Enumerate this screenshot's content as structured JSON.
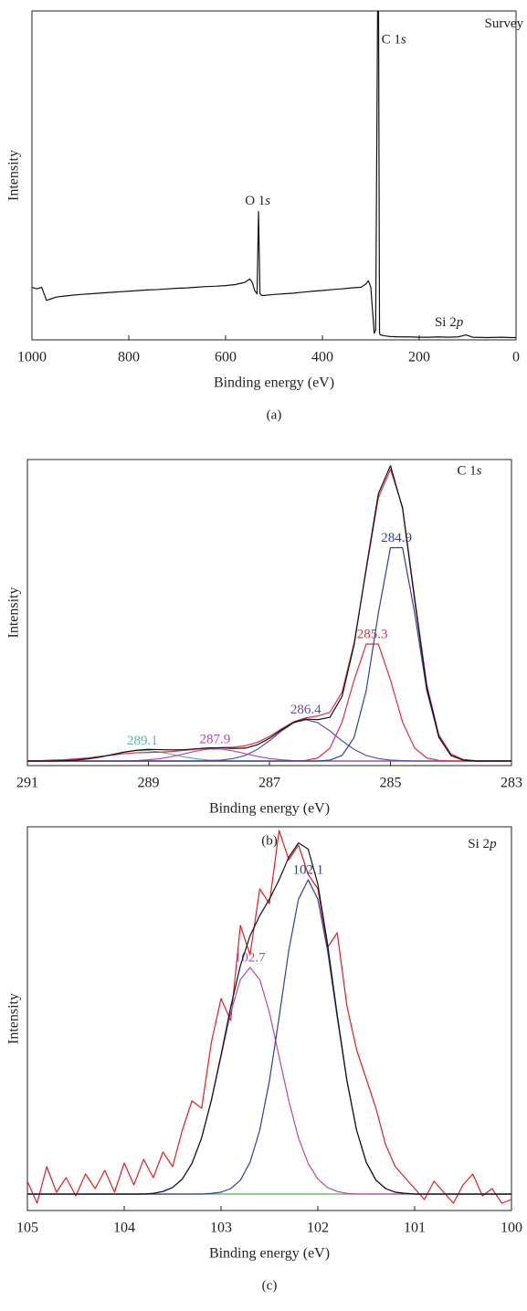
{
  "chart_data": [
    {
      "type": "line",
      "xlabel": "Binding energy (eV)",
      "ylabel": "Intensity",
      "panel_label": "(a)",
      "xlim": [
        1000,
        0
      ],
      "ylim": [
        0,
        100
      ],
      "xticks": [
        1000,
        800,
        600,
        400,
        200,
        0
      ],
      "x": [
        1000,
        990,
        980,
        975,
        970,
        960,
        950,
        940,
        920,
        900,
        880,
        860,
        840,
        820,
        800,
        780,
        760,
        740,
        720,
        700,
        680,
        660,
        640,
        620,
        600,
        580,
        560,
        550,
        545,
        540,
        535,
        532,
        529,
        525,
        520,
        500,
        480,
        460,
        440,
        420,
        400,
        380,
        360,
        340,
        320,
        310,
        305,
        300,
        296,
        293,
        290,
        286,
        284,
        282,
        280,
        270,
        260,
        240,
        220,
        200,
        180,
        160,
        140,
        120,
        103,
        90,
        60,
        30,
        10,
        0
      ],
      "series": [
        {
          "color": "#111111",
          "values": [
            16,
            15.5,
            16,
            14,
            12,
            12.5,
            13,
            13.2,
            13.5,
            13.8,
            14,
            14.2,
            14.4,
            14.6,
            14.8,
            15,
            15.2,
            15.3,
            15.5,
            15.7,
            15.8,
            16,
            16.2,
            16.3,
            16.5,
            16.8,
            17.5,
            18.5,
            17.5,
            15,
            14,
            39,
            14,
            13.5,
            13.5,
            13.8,
            14,
            14.2,
            14.5,
            14.8,
            15,
            15.3,
            15.5,
            15.8,
            16,
            17,
            18,
            16,
            8,
            2,
            3,
            100,
            100,
            2,
            1.5,
            1.2,
            1,
            0.9,
            0.9,
            0.8,
            0.8,
            0.9,
            0.8,
            0.9,
            1.5,
            0.8,
            0.7,
            0.8,
            0.7,
            0.7
          ]
        }
      ],
      "annotations": [
        {
          "text": "Survey",
          "x": 65,
          "y": 96
        },
        {
          "text": "C 1s",
          "x": 278,
          "y": 91
        },
        {
          "text": "O 1s",
          "x": 560,
          "y": 42
        },
        {
          "text": "Si 2p",
          "x": 168,
          "y": 5
        }
      ]
    },
    {
      "type": "line",
      "xlabel": "Binding energy (eV)",
      "ylabel": "Intensity",
      "panel_label": "(b)",
      "xlim": [
        291,
        283
      ],
      "ylim": [
        0,
        100
      ],
      "xticks": [
        291,
        289,
        287,
        285,
        283
      ],
      "x": [
        291.0,
        290.8,
        290.6,
        290.4,
        290.2,
        290.0,
        289.8,
        289.6,
        289.4,
        289.2,
        289.0,
        288.8,
        288.6,
        288.4,
        288.2,
        288.0,
        287.8,
        287.6,
        287.4,
        287.2,
        287.0,
        286.8,
        286.6,
        286.4,
        286.2,
        286.0,
        285.8,
        285.6,
        285.4,
        285.2,
        285.0,
        284.8,
        284.6,
        284.4,
        284.2,
        284.0,
        283.8,
        283.6,
        283.4,
        283.2,
        283.0
      ],
      "series": [
        {
          "color": "#4caf50",
          "values": [
            1.5,
            1.5,
            1.5,
            1.5,
            1.5,
            1.5,
            1.5,
            1.5,
            1.5,
            1.5,
            1.5,
            1.5,
            1.5,
            1.5,
            1.5,
            1.5,
            1.5,
            1.5,
            1.5,
            1.5,
            1.5,
            1.5,
            1.5,
            1.5,
            1.5,
            1.5,
            1.5,
            1.5,
            1.5,
            1.5,
            1.5,
            1.5,
            1.5,
            1.5,
            1.5,
            1.5,
            1.5,
            1.5,
            1.5,
            1.5,
            1.5
          ]
        },
        {
          "color": "#5fb8a0",
          "label": "289.1",
          "values": [
            1.5,
            1.5,
            1.5,
            1.6,
            1.8,
            2.2,
            2.8,
            3.6,
            4.4,
            4.9,
            4.9,
            4.4,
            3.6,
            2.8,
            2.2,
            1.8,
            1.6,
            1.5,
            1.5,
            1.5,
            1.5,
            1.5,
            1.5,
            1.5,
            1.5,
            1.5,
            1.5,
            1.5,
            1.5,
            1.5,
            1.5,
            1.5,
            1.5,
            1.5,
            1.5,
            1.5,
            1.5,
            1.5,
            1.5,
            1.5,
            1.5
          ]
        },
        {
          "color": "#b04aa8",
          "label": "287.9",
          "values": [
            1.5,
            1.5,
            1.5,
            1.5,
            1.5,
            1.5,
            1.5,
            1.5,
            1.5,
            1.6,
            1.9,
            2.3,
            3.0,
            3.9,
            4.8,
            5.4,
            5.4,
            4.8,
            3.9,
            3.0,
            2.3,
            1.9,
            1.6,
            1.5,
            1.5,
            1.5,
            1.5,
            1.5,
            1.5,
            1.5,
            1.5,
            1.5,
            1.5,
            1.5,
            1.5,
            1.5,
            1.5,
            1.5,
            1.5,
            1.5,
            1.5
          ]
        },
        {
          "color": "#5a4fb0",
          "label": "286.4",
          "values": [
            1.5,
            1.5,
            1.5,
            1.5,
            1.5,
            1.5,
            1.5,
            1.5,
            1.5,
            1.5,
            1.5,
            1.5,
            1.5,
            1.5,
            1.5,
            1.6,
            1.8,
            2.3,
            3.3,
            5.3,
            8.1,
            11.3,
            14.0,
            15.0,
            14.0,
            11.3,
            8.1,
            5.3,
            3.3,
            2.3,
            1.8,
            1.6,
            1.5,
            1.5,
            1.5,
            1.5,
            1.5,
            1.5,
            1.5,
            1.5,
            1.5
          ]
        },
        {
          "color": "#e03040",
          "label": "285.3",
          "values": [
            1.5,
            1.5,
            1.5,
            1.5,
            1.5,
            1.5,
            1.5,
            1.5,
            1.5,
            1.5,
            1.5,
            1.5,
            1.5,
            1.5,
            1.5,
            1.5,
            1.5,
            1.5,
            1.5,
            1.5,
            1.5,
            1.5,
            1.5,
            1.7,
            2.5,
            5.7,
            14.2,
            28.0,
            39.7,
            39.7,
            28.0,
            14.2,
            5.7,
            2.5,
            1.7,
            1.5,
            1.5,
            1.5,
            1.5,
            1.5,
            1.5
          ]
        },
        {
          "color": "#2f3fa0",
          "label": "284.9",
          "values": [
            1.5,
            1.5,
            1.5,
            1.5,
            1.5,
            1.5,
            1.5,
            1.5,
            1.5,
            1.5,
            1.5,
            1.5,
            1.5,
            1.5,
            1.5,
            1.5,
            1.5,
            1.5,
            1.5,
            1.5,
            1.5,
            1.5,
            1.5,
            1.5,
            1.5,
            1.8,
            3.3,
            9.2,
            24.6,
            49.8,
            71.2,
            71.2,
            49.8,
            24.6,
            9.2,
            3.3,
            1.8,
            1.5,
            1.5,
            1.5,
            1.5
          ]
        },
        {
          "color": "#e03040",
          "values": [
            1.5,
            1.6,
            1.8,
            1.9,
            2.2,
            2.5,
            3.0,
            3.4,
            3.9,
            4.2,
            4.3,
            4.4,
            4.6,
            5.0,
            5.4,
            5.6,
            5.9,
            6.0,
            6.5,
            7.6,
            9.5,
            12.0,
            14.3,
            15.6,
            16.2,
            17.4,
            24,
            40.2,
            64,
            87.5,
            96.8,
            84.5,
            55,
            26.5,
            10,
            3.8,
            2.0,
            1.6,
            1.5,
            1.5,
            1.5
          ]
        },
        {
          "color": "#111111",
          "values": [
            1.5,
            1.5,
            1.5,
            1.6,
            1.8,
            2.2,
            2.8,
            3.6,
            4.4,
            5.0,
            5.3,
            5.2,
            5.1,
            5.2,
            5.5,
            5.8,
            5.8,
            5.6,
            5.7,
            6.8,
            8.9,
            11.7,
            14.1,
            15.2,
            15.0,
            15.8,
            22.6,
            39.5,
            64.6,
            88.8,
            98.0,
            84.0,
            54.0,
            25.6,
            9.4,
            3.3,
            1.8,
            1.5,
            1.5,
            1.5,
            1.5
          ]
        }
      ],
      "annotations": [
        {
          "text": "C 1s",
          "x": 283.9,
          "y": 96
        }
      ]
    },
    {
      "type": "line",
      "xlabel": "Binding energy (eV)",
      "ylabel": "Intensity",
      "panel_label": "(c)",
      "xlim": [
        105,
        100
      ],
      "ylim": [
        0,
        105
      ],
      "xticks": [
        105,
        104,
        103,
        102,
        101,
        100
      ],
      "x": [
        105.0,
        104.9,
        104.8,
        104.7,
        104.6,
        104.5,
        104.4,
        104.3,
        104.2,
        104.1,
        104.0,
        103.9,
        103.8,
        103.7,
        103.6,
        103.5,
        103.4,
        103.3,
        103.2,
        103.1,
        103.0,
        102.9,
        102.8,
        102.7,
        102.6,
        102.5,
        102.4,
        102.3,
        102.2,
        102.1,
        102.0,
        101.9,
        101.8,
        101.7,
        101.6,
        101.5,
        101.4,
        101.3,
        101.2,
        101.1,
        101.0,
        100.9,
        100.8,
        100.7,
        100.6,
        100.5,
        100.4,
        100.3,
        100.2,
        100.1,
        100.0
      ],
      "series": [
        {
          "color": "#e02020",
          "values": [
            8,
            2,
            12,
            5,
            9,
            4,
            10,
            6,
            11,
            5,
            13,
            7,
            14,
            9,
            16,
            12,
            22,
            30,
            28,
            46,
            58,
            52,
            78,
            70,
            88,
            84,
            104,
            96,
            100,
            92,
            88,
            72,
            76,
            56,
            44,
            36,
            28,
            18,
            12,
            9,
            6,
            3,
            8,
            5,
            2,
            7,
            10,
            4,
            6,
            2,
            3
          ]
        },
        {
          "color": "#4caf50",
          "values": [
            4.5,
            4.5,
            4.5,
            4.5,
            4.5,
            4.5,
            4.5,
            4.5,
            4.5,
            4.5,
            4.5,
            4.5,
            4.5,
            4.5,
            4.5,
            4.5,
            4.5,
            4.5,
            4.5,
            4.5,
            4.5,
            4.5,
            4.5,
            4.5,
            4.5,
            4.5,
            4.5,
            4.5,
            4.5,
            4.5,
            4.5,
            4.5,
            4.5,
            4.5,
            4.5,
            4.5,
            4.5,
            4.5,
            4.5,
            4.5,
            4.5,
            4.5,
            4.5,
            4.5,
            4.5,
            4.5,
            4.5,
            4.5,
            4.5,
            4.5,
            4.5
          ]
        },
        {
          "color": "#b04aa8",
          "label": "102.7",
          "values": [
            4.5,
            4.5,
            4.5,
            4.5,
            4.5,
            4.5,
            4.5,
            4.5,
            4.5,
            4.5,
            4.5,
            4.5,
            4.5,
            4.7,
            5.2,
            6.3,
            8.6,
            12.9,
            19.9,
            30.0,
            42.1,
            54.2,
            63.2,
            66.5,
            63.2,
            54.2,
            42.1,
            30.0,
            19.9,
            12.9,
            8.6,
            6.3,
            5.2,
            4.7,
            4.5,
            4.5,
            4.5,
            4.5,
            4.5,
            4.5,
            4.5,
            4.5,
            4.5,
            4.5,
            4.5,
            4.5,
            4.5,
            4.5,
            4.5,
            4.5,
            4.5
          ]
        },
        {
          "color": "#2f3fa0",
          "label": "102.1",
          "values": [
            4.5,
            4.5,
            4.5,
            4.5,
            4.5,
            4.5,
            4.5,
            4.5,
            4.5,
            4.5,
            4.5,
            4.5,
            4.5,
            4.5,
            4.5,
            4.5,
            4.5,
            4.5,
            4.5,
            4.7,
            5.0,
            6.0,
            8.3,
            13.2,
            22.0,
            35.5,
            52.9,
            71.2,
            85.2,
            90.5,
            85.2,
            71.2,
            52.9,
            35.5,
            22.0,
            13.2,
            8.3,
            6.0,
            5.0,
            4.7,
            4.5,
            4.5,
            4.5,
            4.5,
            4.5,
            4.5,
            4.5,
            4.5,
            4.5,
            4.5,
            4.5
          ]
        },
        {
          "color": "#111111",
          "values": [
            4.5,
            4.5,
            4.5,
            4.5,
            4.5,
            4.5,
            4.5,
            4.5,
            4.5,
            4.5,
            4.5,
            4.5,
            4.5,
            4.7,
            5.2,
            6.3,
            8.6,
            12.9,
            19.9,
            30.2,
            42.6,
            55.7,
            67.0,
            75.2,
            80.7,
            85.2,
            90.5,
            96.7,
            100.6,
            98.9,
            89.3,
            73.0,
            53.6,
            35.7,
            22.0,
            13.2,
            8.3,
            6.0,
            5.0,
            4.7,
            4.5,
            4.5,
            4.5,
            4.5,
            4.5,
            4.5,
            4.5,
            4.5,
            4.5,
            4.5,
            4.5
          ]
        }
      ],
      "annotations": [
        {
          "text": "Si 2p",
          "x": 100.45,
          "y": 100
        }
      ]
    }
  ]
}
